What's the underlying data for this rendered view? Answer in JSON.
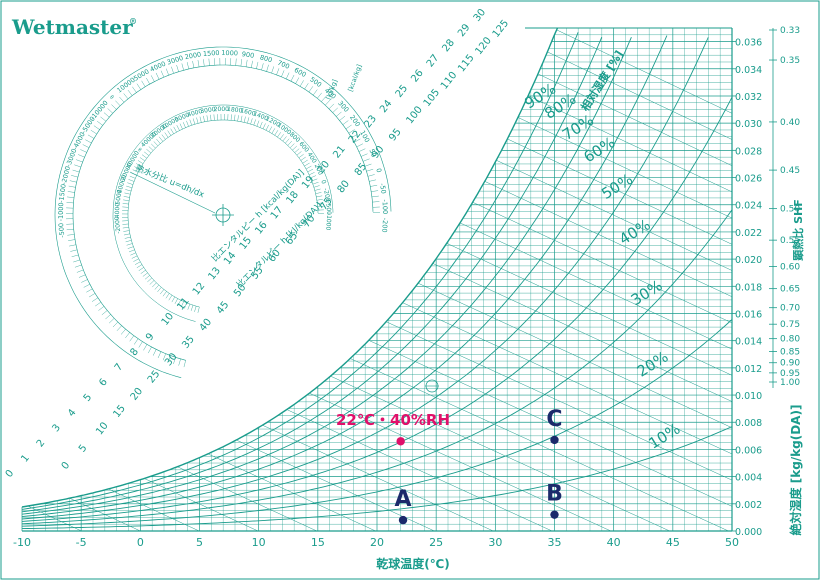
{
  "brand": "Wetmaster",
  "brand_mark": "®",
  "chart_data": {
    "type": "scatter",
    "title": "",
    "xlabel": "乾球温度(℃)",
    "ylabel": "絶対湿度 [kg/kg(DA)]",
    "xlim": [
      -10,
      50
    ],
    "ylim": [
      0,
      0.037
    ],
    "x_ticks": [
      -10,
      -5,
      0,
      5,
      10,
      15,
      20,
      25,
      30,
      35,
      40,
      45,
      50
    ],
    "y_ticks": [
      "0.000",
      "0.002",
      "0.004",
      "0.006",
      "0.008",
      "0.010",
      "0.012",
      "0.014",
      "0.016",
      "0.018",
      "0.020",
      "0.022",
      "0.024",
      "0.026",
      "0.028",
      "0.030",
      "0.032",
      "0.034",
      "0.036"
    ],
    "rh_curves": [
      10,
      20,
      30,
      40,
      50,
      60,
      70,
      80,
      90
    ],
    "rh_labels": [
      "10%",
      "20%",
      "30%",
      "40%",
      "50%",
      "60%",
      "70%",
      "80%",
      "90%"
    ],
    "rh_axis_label": "相対湿度 [%]",
    "shf_label": "顕熱比 SHF",
    "shf_ticks": [
      "0.33",
      "0.35",
      "0.40",
      "0.45",
      "0.50",
      "0.55",
      "0.60",
      "0.65",
      "0.70",
      "0.75",
      "0.80",
      "0.85",
      "0.90",
      "0.95",
      "1.00"
    ],
    "enthalpy_kcal_label": "比エンタルピー h [kcal/kg(DA)]",
    "enthalpy_kcal_ticks": [
      "0",
      "1",
      "2",
      "3",
      "4",
      "5",
      "6",
      "7",
      "8",
      "9",
      "10",
      "11",
      "12",
      "13",
      "14",
      "15",
      "16",
      "17",
      "18",
      "19",
      "20",
      "21",
      "22",
      "23",
      "24",
      "25",
      "26",
      "27",
      "28",
      "29",
      "30"
    ],
    "enthalpy_kj_label": "比エンタルピー h [kJ/kg(DA)]",
    "enthalpy_kj_ticks": [
      "0",
      "5",
      "10",
      "15",
      "20",
      "25",
      "30",
      "35",
      "40",
      "45",
      "50",
      "55",
      "60",
      "65",
      "70",
      "75",
      "80",
      "85",
      "90",
      "95",
      "100",
      "105",
      "110",
      "115",
      "120",
      "125"
    ],
    "protractor_label": "熱水分比 u=dh/dx",
    "protractor_inner_unit": "[kJ/kg]",
    "protractor_outer_unit": "[kcal/kg]",
    "protractor_outer_ticks": [
      "-500",
      "-1000",
      "-1500",
      "-2000",
      "-3000",
      "-4000",
      "-5000",
      "-10000",
      "∞",
      "10000",
      "5000",
      "4000",
      "3000",
      "2000",
      "1500",
      "1000",
      "900",
      "800",
      "700",
      "600",
      "500",
      "400",
      "300",
      "200",
      "100",
      "50",
      "0",
      "-50",
      "-100",
      "-200"
    ],
    "protractor_inner_ticks": [
      "-2000",
      "-4000",
      "-5000",
      "-10000",
      "-20000",
      "-40000",
      "∞",
      "40000",
      "20000",
      "10000",
      "5000",
      "4000",
      "3000",
      "2000",
      "1800",
      "1600",
      "1400",
      "1200",
      "1000",
      "800",
      "600",
      "400",
      "200",
      "0",
      "-200",
      "-500",
      "-1000"
    ],
    "points": [
      {
        "label": "A",
        "x": 22.2,
        "y": 0.0008
      },
      {
        "label": "B",
        "x": 35.0,
        "y": 0.0012
      },
      {
        "label": "C",
        "x": 35.0,
        "y": 0.0067
      },
      {
        "label": "22℃・40%RH",
        "x": 22.0,
        "y": 0.0066
      }
    ],
    "colors": {
      "grid": "#1a9c8c",
      "point": "#1b2a6b",
      "highlight": "#e0106a"
    }
  }
}
